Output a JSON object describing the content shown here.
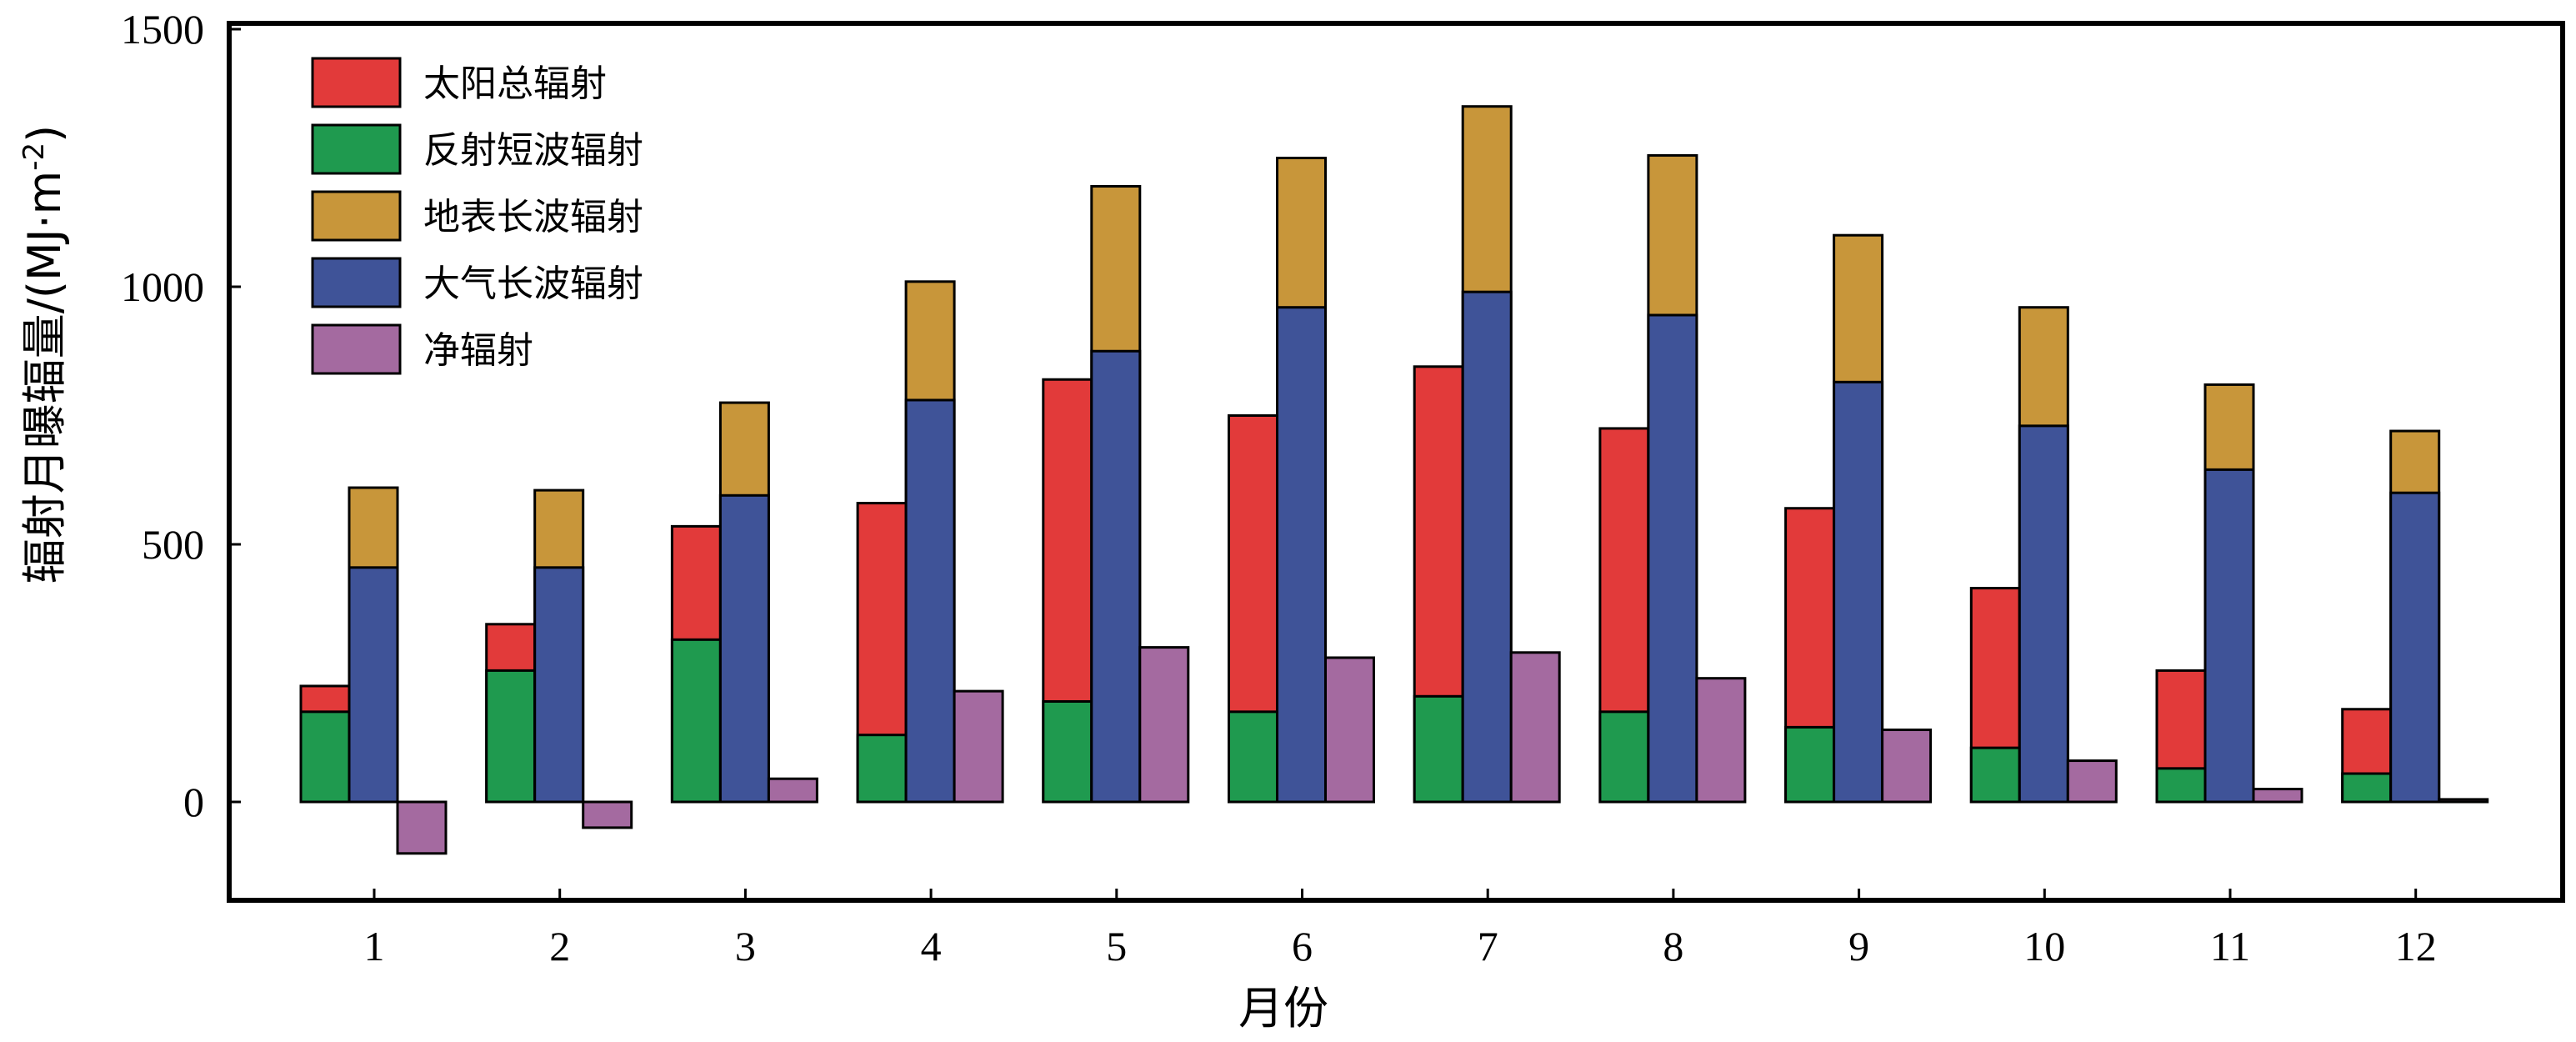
{
  "chart_data": {
    "type": "bar",
    "stacked_groups": true,
    "xlabel": "月份",
    "ylabel_main": "辐射月曝辐量/(MJ·m",
    "ylabel_sup": "-2",
    "ylabel_close": ")",
    "ylim": [
      -200,
      1500
    ],
    "yticks": [
      0,
      500,
      1000,
      1500
    ],
    "categories": [
      "1",
      "2",
      "3",
      "4",
      "5",
      "6",
      "7",
      "8",
      "9",
      "10",
      "11",
      "12"
    ],
    "legend_position": "top-left",
    "grid": false,
    "series": [
      {
        "name": "太阳总辐射",
        "color": "#e23a3a",
        "values": [
          225,
          345,
          535,
          580,
          820,
          750,
          845,
          725,
          570,
          415,
          255,
          180
        ]
      },
      {
        "name": "反射短波辐射",
        "color": "#1f9a4f",
        "values": [
          175,
          255,
          315,
          130,
          195,
          175,
          205,
          175,
          145,
          105,
          65,
          55
        ]
      },
      {
        "name": "地表长波辐射",
        "color": "#c8963a",
        "values": [
          610,
          605,
          775,
          1010,
          1195,
          1250,
          1350,
          1255,
          1100,
          960,
          810,
          720
        ]
      },
      {
        "name": "大气长波辐射",
        "color": "#3f5398",
        "values": [
          455,
          455,
          595,
          780,
          875,
          960,
          990,
          945,
          815,
          730,
          645,
          600
        ]
      },
      {
        "name": "净辐射",
        "color": "#a46aa0",
        "values": [
          -100,
          -50,
          45,
          215,
          300,
          280,
          290,
          240,
          140,
          80,
          25,
          5
        ]
      }
    ]
  }
}
